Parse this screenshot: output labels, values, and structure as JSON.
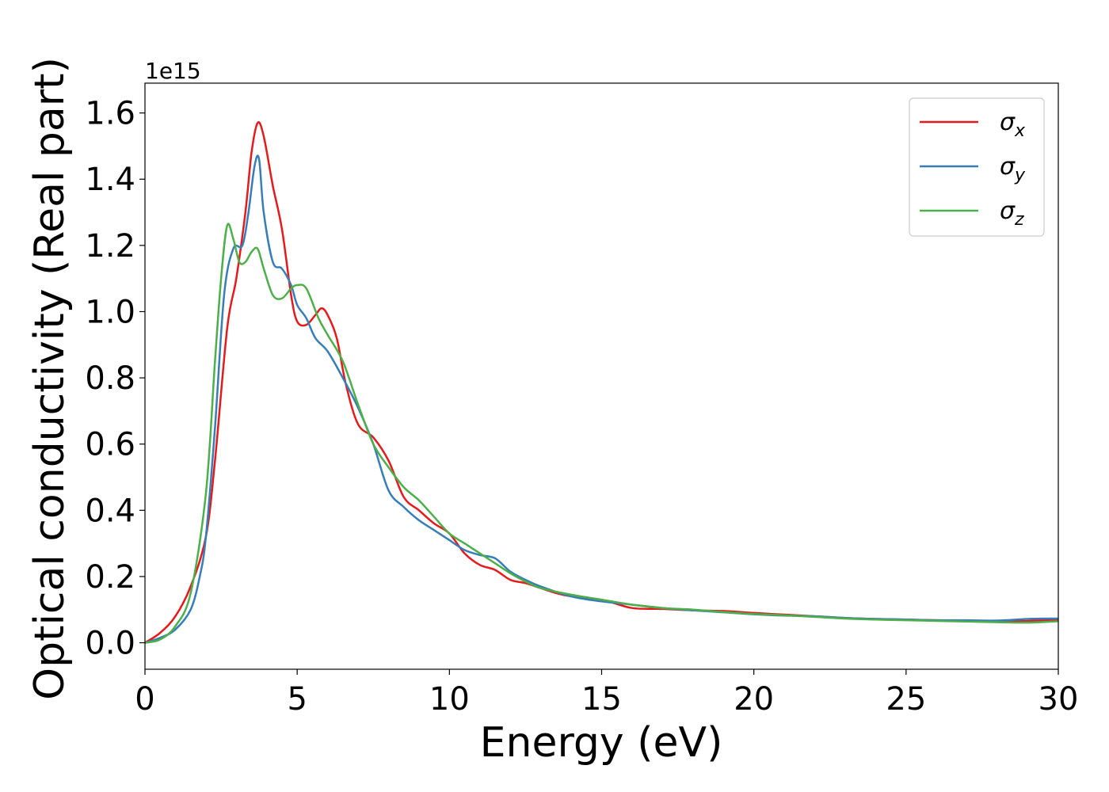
{
  "chart_data": {
    "type": "line",
    "xlabel": "Energy (eV)",
    "ylabel": "Optical conductivity (Real part)",
    "y_offset_label": "1e15",
    "xlim": [
      0,
      30
    ],
    "ylim": [
      -0.08,
      1.69
    ],
    "x_ticks": [
      0,
      5,
      10,
      15,
      20,
      25,
      30
    ],
    "x_tick_labels": [
      "0",
      "5",
      "10",
      "15",
      "20",
      "25",
      "30"
    ],
    "y_ticks": [
      0.0,
      0.2,
      0.4,
      0.6,
      0.8,
      1.0,
      1.2,
      1.4,
      1.6
    ],
    "y_tick_labels": [
      "0.0",
      "0.2",
      "0.4",
      "0.6",
      "0.8",
      "1.0",
      "1.2",
      "1.4",
      "1.6"
    ],
    "grid": false,
    "legend_position": "top-right",
    "series": [
      {
        "name": "σx",
        "symbol": "σ",
        "subscript": "x",
        "color": "#e41a1c",
        "x": [
          0,
          0.5,
          1,
          1.5,
          2,
          2.3,
          2.7,
          3,
          3.3,
          3.5,
          3.7,
          3.9,
          4.2,
          4.5,
          4.8,
          5,
          5.3,
          5.6,
          5.8,
          6,
          6.3,
          6.6,
          7,
          7.5,
          8,
          8.5,
          9,
          9.5,
          10,
          10.5,
          11,
          11.5,
          12,
          12.5,
          13,
          13.5,
          14,
          15,
          16,
          17,
          18,
          19,
          20,
          21,
          22,
          23,
          24,
          25,
          26,
          27,
          28,
          29,
          30
        ],
        "y": [
          0.0,
          0.03,
          0.08,
          0.17,
          0.32,
          0.55,
          0.95,
          1.1,
          1.3,
          1.48,
          1.57,
          1.53,
          1.38,
          1.25,
          1.05,
          0.97,
          0.96,
          0.99,
          1.01,
          0.99,
          0.92,
          0.78,
          0.66,
          0.62,
          0.55,
          0.44,
          0.4,
          0.36,
          0.33,
          0.27,
          0.235,
          0.22,
          0.19,
          0.18,
          0.165,
          0.15,
          0.14,
          0.13,
          0.105,
          0.102,
          0.098,
          0.096,
          0.09,
          0.085,
          0.08,
          0.075,
          0.072,
          0.07,
          0.068,
          0.066,
          0.064,
          0.066,
          0.07
        ]
      },
      {
        "name": "σy",
        "symbol": "σ",
        "subscript": "y",
        "color": "#377eb8",
        "x": [
          0,
          0.5,
          1,
          1.5,
          1.8,
          2,
          2.3,
          2.6,
          2.9,
          3.2,
          3.4,
          3.6,
          3.75,
          3.9,
          4.2,
          4.5,
          4.8,
          5,
          5.3,
          5.6,
          6,
          6.5,
          7,
          7.5,
          8,
          8.5,
          9,
          9.5,
          10,
          10.5,
          11,
          11.5,
          12,
          12.5,
          13,
          14,
          15,
          16,
          17,
          18,
          19,
          20,
          21,
          22,
          23,
          24,
          25,
          26,
          27,
          28,
          29,
          30
        ],
        "y": [
          0.0,
          0.015,
          0.04,
          0.1,
          0.2,
          0.32,
          0.65,
          1.05,
          1.19,
          1.2,
          1.3,
          1.44,
          1.46,
          1.3,
          1.15,
          1.13,
          1.08,
          1.02,
          0.98,
          0.92,
          0.88,
          0.8,
          0.71,
          0.6,
          0.46,
          0.41,
          0.37,
          0.34,
          0.31,
          0.28,
          0.265,
          0.255,
          0.215,
          0.19,
          0.17,
          0.14,
          0.125,
          0.115,
          0.105,
          0.098,
          0.092,
          0.086,
          0.082,
          0.08,
          0.075,
          0.072,
          0.07,
          0.068,
          0.068,
          0.067,
          0.072,
          0.073
        ]
      },
      {
        "name": "σz",
        "symbol": "σ",
        "subscript": "z",
        "color": "#4daf4a",
        "x": [
          0,
          0.5,
          1,
          1.5,
          2,
          2.3,
          2.5,
          2.7,
          2.9,
          3.1,
          3.3,
          3.5,
          3.7,
          3.9,
          4.2,
          4.5,
          4.8,
          5,
          5.3,
          5.7,
          6,
          6.5,
          7,
          7.5,
          8,
          8.5,
          9,
          9.5,
          10,
          10.5,
          11,
          11.5,
          12,
          12.5,
          13,
          14,
          15,
          16,
          17,
          18,
          19,
          20,
          21,
          22,
          23,
          24,
          25,
          26,
          27,
          28,
          29,
          30
        ],
        "y": [
          0.0,
          0.01,
          0.05,
          0.15,
          0.45,
          0.85,
          1.1,
          1.26,
          1.22,
          1.15,
          1.15,
          1.18,
          1.19,
          1.13,
          1.05,
          1.04,
          1.07,
          1.08,
          1.07,
          0.98,
          0.93,
          0.85,
          0.72,
          0.6,
          0.53,
          0.47,
          0.43,
          0.38,
          0.33,
          0.3,
          0.27,
          0.24,
          0.21,
          0.185,
          0.165,
          0.145,
          0.13,
          0.115,
          0.105,
          0.1,
          0.093,
          0.087,
          0.083,
          0.078,
          0.073,
          0.07,
          0.068,
          0.066,
          0.064,
          0.062,
          0.061,
          0.065
        ]
      }
    ]
  }
}
